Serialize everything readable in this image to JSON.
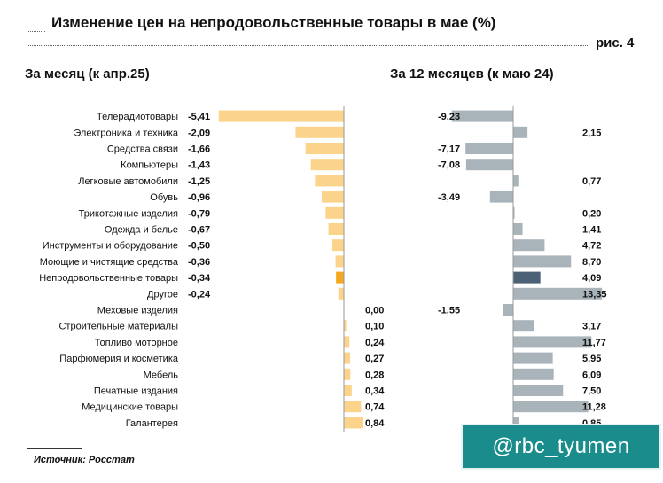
{
  "title": "Изменение цен на непродовольственные товары в мае (%)",
  "figure_label": "рис. 4",
  "source": "Источник: Росстат",
  "watermark": "@rbc_tyumen",
  "colors": {
    "month_bar": "#fbd38b",
    "month_highlight": "#f3a91d",
    "year_bar": "#a9b3ba",
    "year_highlight": "#4d6176",
    "badge": "#1a8c8c"
  },
  "chart_data": [
    {
      "type": "bar",
      "orientation": "horizontal",
      "title": "За месяц (к апр.25)",
      "categories": [
        "Телерадиотовары",
        "Электроника и техника",
        "Средства связи",
        "Компьютеры",
        "Легковые автомобили",
        "Обувь",
        "Трикотажные изделия",
        "Одежда и белье",
        "Инструменты и оборудование",
        "Моющие и чистящие средства",
        "Непродовольственные товары",
        "Другое",
        "Меховые изделия",
        "Строительные материалы",
        "Топливо моторное",
        "Парфюмерия и косметика",
        "Мебель",
        "Печатные издания",
        "Медицинские товары",
        "Галантерея"
      ],
      "values": [
        -5.41,
        -2.09,
        -1.66,
        -1.43,
        -1.25,
        -0.96,
        -0.79,
        -0.67,
        -0.5,
        -0.36,
        -0.34,
        -0.24,
        0.0,
        0.1,
        0.24,
        0.27,
        0.28,
        0.34,
        0.74,
        0.84
      ],
      "labels": [
        "-5,41",
        "-2,09",
        "-1,66",
        "-1,43",
        "-1,25",
        "-0,96",
        "-0,79",
        "-0,67",
        "-0,50",
        "-0,36",
        "-0,34",
        "-0,24",
        "0,00",
        "0,10",
        "0,24",
        "0,27",
        "0,28",
        "0,34",
        "0,74",
        "0,84"
      ],
      "highlight_index": 10
    },
    {
      "type": "bar",
      "orientation": "horizontal",
      "title": "За 12 месяцев (к маю 24)",
      "categories": [
        "Телерадиотовары",
        "Электроника и техника",
        "Средства связи",
        "Компьютеры",
        "Легковые автомобили",
        "Обувь",
        "Трикотажные изделия",
        "Одежда и белье",
        "Инструменты и оборудование",
        "Моющие и чистящие средства",
        "Непродовольственные товары",
        "Другое",
        "Меховые изделия",
        "Строительные материалы",
        "Топливо моторное",
        "Парфюмерия и косметика",
        "Мебель",
        "Печатные издания",
        "Медицинские товары",
        "Галантерея"
      ],
      "values": [
        -9.23,
        2.15,
        -7.17,
        -7.08,
        0.77,
        -3.49,
        0.2,
        1.41,
        4.72,
        8.7,
        4.09,
        13.35,
        -1.55,
        3.17,
        11.77,
        5.95,
        6.09,
        7.5,
        11.28,
        0.85
      ],
      "labels": [
        "-9,23",
        "2,15",
        "-7,17",
        "-7,08",
        "0,77",
        "-3,49",
        "0,20",
        "1,41",
        "4,72",
        "8,70",
        "4,09",
        "13,35",
        "-1,55",
        "3,17",
        "11,77",
        "5,95",
        "6,09",
        "7,50",
        "11,28",
        "0,85"
      ],
      "highlight_index": 10
    }
  ]
}
